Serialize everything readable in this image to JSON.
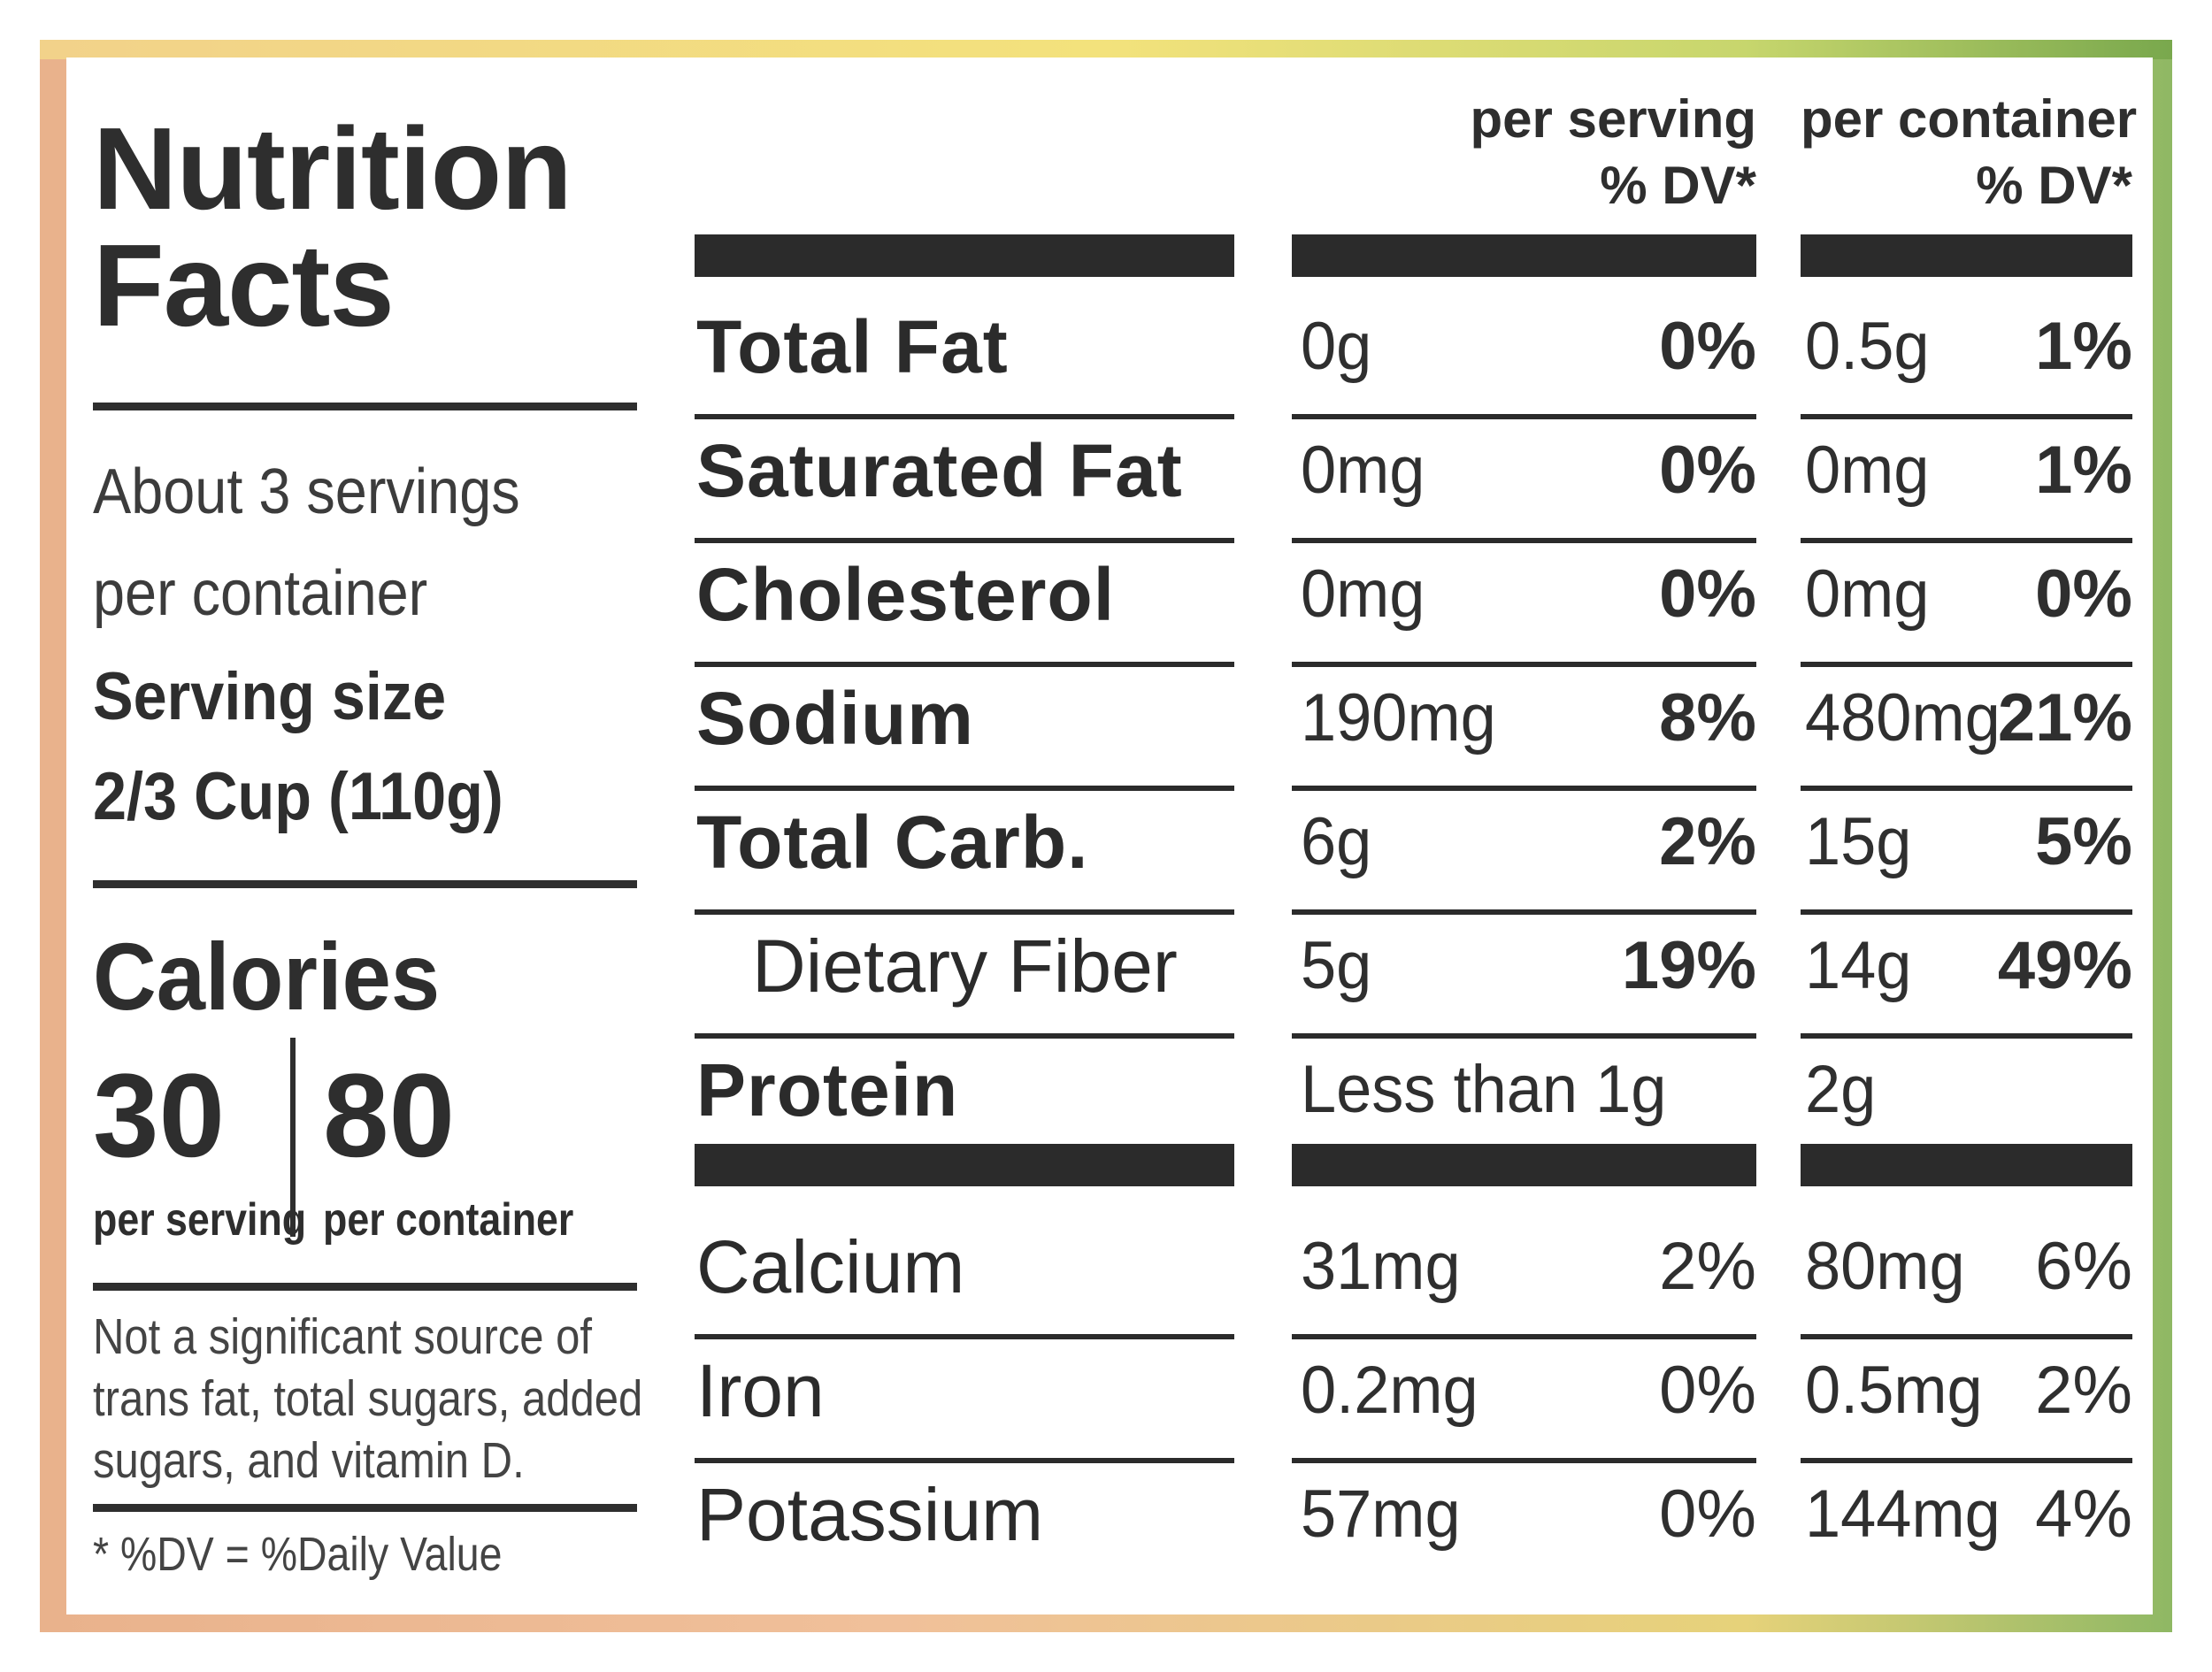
{
  "title": {
    "line1": "Nutrition",
    "line2": "Facts"
  },
  "servings": {
    "per_container_line1": "About 3 servings",
    "per_container_line2": "per container",
    "size_label": "Serving size",
    "size_value": "2/3 Cup (110g)"
  },
  "calories": {
    "label": "Calories",
    "per_serving_value": "30",
    "per_serving_label": "per serving",
    "per_container_value": "80",
    "per_container_label": "per container"
  },
  "footnote": {
    "line1": "Not a significant source of",
    "line2": "trans fat, total sugars, added",
    "line3": "sugars, and vitamin D.",
    "dv_note": "* %DV = %Daily Value"
  },
  "headers": {
    "per_serving": "per serving",
    "per_serving_dv": "% DV*",
    "per_container": "per container",
    "per_container_dv": "% DV*"
  },
  "nutrients": [
    {
      "name": "Total Fat",
      "bold": true,
      "serving_amount": "0g",
      "serving_dv": "0%",
      "container_amount": "0.5g",
      "container_dv": "1%"
    },
    {
      "name": "Saturated Fat",
      "bold": true,
      "serving_amount": "0mg",
      "serving_dv": "0%",
      "container_amount": "0mg",
      "container_dv": "1%"
    },
    {
      "name": "Cholesterol",
      "bold": true,
      "serving_amount": "0mg",
      "serving_dv": "0%",
      "container_amount": "0mg",
      "container_dv": "0%"
    },
    {
      "name": "Sodium",
      "bold": true,
      "serving_amount": "190mg",
      "serving_dv": "8%",
      "container_amount": "480mg",
      "container_dv": "21%"
    },
    {
      "name": "Total Carb.",
      "bold": true,
      "serving_amount": "6g",
      "serving_dv": "2%",
      "container_amount": "15g",
      "container_dv": "5%"
    },
    {
      "name": "Dietary Fiber",
      "bold": false,
      "serving_amount": "5g",
      "serving_dv": "19%",
      "container_amount": "14g",
      "container_dv": "49%"
    },
    {
      "name": "Protein",
      "bold": true,
      "serving_amount": "Less than 1g",
      "serving_dv": "",
      "container_amount": "2g",
      "container_dv": ""
    }
  ],
  "minerals": [
    {
      "name": "Calcium",
      "serving_amount": "31mg",
      "serving_dv": "2%",
      "container_amount": "80mg",
      "container_dv": "6%"
    },
    {
      "name": "Iron",
      "serving_amount": "0.2mg",
      "serving_dv": "0%",
      "container_amount": "0.5mg",
      "container_dv": "2%"
    },
    {
      "name": "Potassium",
      "serving_amount": "57mg",
      "serving_dv": "0%",
      "container_amount": "144mg",
      "container_dv": "4%"
    }
  ]
}
